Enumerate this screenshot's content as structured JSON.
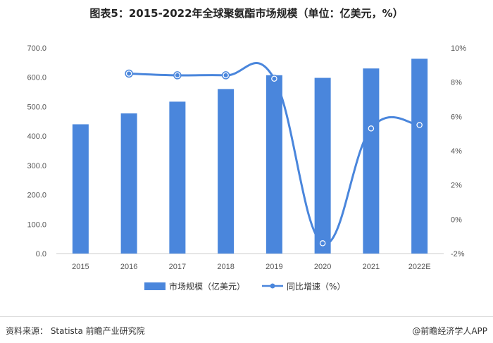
{
  "chart_data": {
    "type": "bar",
    "title": "图表5：2015-2022年全球聚氨酯市场规模（单位：亿美元，%）",
    "categories": [
      "2015",
      "2016",
      "2017",
      "2018",
      "2019",
      "2020",
      "2021",
      "2022E"
    ],
    "series": [
      {
        "name": "市场规模（亿美元）",
        "type": "bar",
        "axis": "left",
        "color": "#4a86dc",
        "values": [
          440,
          477,
          517,
          560,
          607,
          598,
          630,
          663
        ]
      },
      {
        "name": "同比增速（%）",
        "type": "line",
        "axis": "right",
        "color": "#4a86dc",
        "values": [
          null,
          8.5,
          8.4,
          8.4,
          8.2,
          -1.4,
          5.3,
          5.5
        ]
      }
    ],
    "y_left": {
      "min": 0,
      "max": 700,
      "ticks": [
        "0.0",
        "100.0",
        "200.0",
        "300.0",
        "400.0",
        "500.0",
        "600.0",
        "700.0"
      ]
    },
    "y_right": {
      "min": -2,
      "max": 10,
      "ticks": [
        "-2%",
        "0%",
        "2%",
        "4%",
        "6%",
        "8%",
        "10%"
      ]
    },
    "legend_position": "bottom",
    "grid": false
  },
  "footer": {
    "source": "资料来源： Statista 前瞻产业研究院",
    "brand": "@前瞻经济学人APP"
  }
}
